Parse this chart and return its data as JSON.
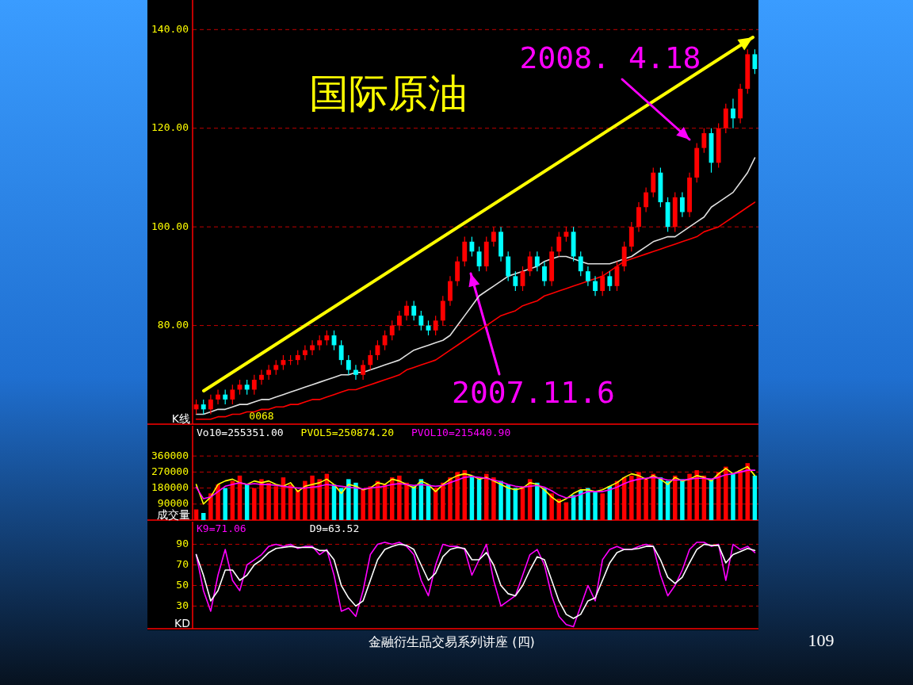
{
  "chart_data": [
    {
      "type": "candlestick",
      "title": "国际原油",
      "ylabel": "K线",
      "ylim": [
        60,
        146
      ],
      "yticks": [
        {
          "value": 80,
          "label": "80.00"
        },
        {
          "value": 100,
          "label": "100.00"
        },
        {
          "value": 120,
          "label": "120.00"
        },
        {
          "value": 140,
          "label": "140.00"
        }
      ],
      "grid": "y",
      "categories": [
        null,
        null,
        null,
        null,
        null,
        null,
        null,
        null,
        null,
        null,
        null,
        null,
        null,
        null,
        null,
        null,
        null,
        null,
        null,
        null,
        null,
        null,
        null,
        null,
        null,
        null,
        null,
        null,
        null,
        null,
        null,
        null,
        null,
        null,
        null,
        null,
        null,
        null,
        null,
        null,
        null,
        null,
        null,
        null,
        null,
        null,
        null,
        null,
        null,
        null,
        null,
        null,
        null,
        null,
        null,
        null,
        null,
        null,
        null,
        null,
        null,
        null,
        null,
        null,
        null,
        null,
        null,
        null,
        null,
        null,
        null,
        null,
        null,
        null,
        null,
        null,
        null,
        null
      ],
      "ohlc": [
        [
          63,
          65,
          62,
          64
        ],
        [
          64,
          65,
          62,
          63
        ],
        [
          63,
          66,
          62,
          65
        ],
        [
          65,
          67,
          64,
          66
        ],
        [
          66,
          67,
          64,
          65
        ],
        [
          65,
          68,
          64,
          67
        ],
        [
          67,
          69,
          66,
          68
        ],
        [
          68,
          69,
          66,
          67
        ],
        [
          67,
          70,
          66,
          69
        ],
        [
          69,
          71,
          68,
          70
        ],
        [
          70,
          72,
          69,
          71
        ],
        [
          71,
          73,
          70,
          72
        ],
        [
          72,
          74,
          71,
          73
        ],
        [
          73,
          74,
          72,
          73
        ],
        [
          73,
          75,
          72,
          74
        ],
        [
          74,
          76,
          73,
          75
        ],
        [
          75,
          77,
          74,
          76
        ],
        [
          76,
          78,
          75,
          77
        ],
        [
          77,
          79,
          76,
          78
        ],
        [
          78,
          79,
          75,
          76
        ],
        [
          76,
          77,
          72,
          73
        ],
        [
          73,
          74,
          70,
          71
        ],
        [
          71,
          72,
          69,
          70
        ],
        [
          70,
          73,
          69,
          72
        ],
        [
          72,
          75,
          71,
          74
        ],
        [
          74,
          77,
          73,
          76
        ],
        [
          76,
          79,
          75,
          78
        ],
        [
          78,
          81,
          77,
          80
        ],
        [
          80,
          83,
          79,
          82
        ],
        [
          82,
          85,
          81,
          84
        ],
        [
          84,
          85,
          81,
          82
        ],
        [
          82,
          83,
          79,
          80
        ],
        [
          80,
          81,
          78,
          79
        ],
        [
          79,
          82,
          78,
          81
        ],
        [
          81,
          86,
          80,
          85
        ],
        [
          85,
          90,
          84,
          89
        ],
        [
          89,
          94,
          88,
          93
        ],
        [
          93,
          98,
          92,
          97
        ],
        [
          97,
          98,
          94,
          95
        ],
        [
          95,
          96,
          91,
          92
        ],
        [
          92,
          98,
          91,
          97
        ],
        [
          97,
          100,
          96,
          99
        ],
        [
          99,
          100,
          93,
          94
        ],
        [
          94,
          95,
          89,
          90
        ],
        [
          90,
          91,
          87,
          88
        ],
        [
          88,
          92,
          87,
          91
        ],
        [
          91,
          95,
          90,
          94
        ],
        [
          94,
          95,
          91,
          92
        ],
        [
          92,
          93,
          88,
          89
        ],
        [
          89,
          96,
          88,
          95
        ],
        [
          95,
          99,
          94,
          98
        ],
        [
          98,
          100,
          97,
          99
        ],
        [
          99,
          100,
          93,
          94
        ],
        [
          94,
          95,
          90,
          91
        ],
        [
          91,
          92,
          88,
          89
        ],
        [
          89,
          90,
          86,
          87
        ],
        [
          87,
          91,
          86,
          90
        ],
        [
          90,
          91,
          87,
          88
        ],
        [
          88,
          93,
          87,
          92
        ],
        [
          92,
          97,
          91,
          96
        ],
        [
          96,
          101,
          95,
          100
        ],
        [
          100,
          105,
          99,
          104
        ],
        [
          104,
          108,
          103,
          107
        ],
        [
          107,
          112,
          106,
          111
        ],
        [
          111,
          112,
          104,
          105
        ],
        [
          105,
          106,
          99,
          100
        ],
        [
          100,
          107,
          99,
          106
        ],
        [
          106,
          107,
          102,
          103
        ],
        [
          103,
          111,
          102,
          110
        ],
        [
          110,
          117,
          109,
          116
        ],
        [
          116,
          120,
          115,
          119
        ],
        [
          119,
          120,
          111,
          113
        ],
        [
          113,
          121,
          112,
          120
        ],
        [
          120,
          125,
          119,
          124
        ],
        [
          124,
          126,
          120,
          122
        ],
        [
          122,
          129,
          121,
          128
        ],
        [
          128,
          136,
          127,
          135
        ],
        [
          135,
          136,
          131,
          132
        ]
      ],
      "colors": [
        "#ff0000",
        "#00ffff",
        "#ff0000",
        "#ff0000",
        "#00ffff",
        "#ff0000",
        "#ff0000",
        "#00ffff",
        "#ff0000",
        "#ff0000",
        "#ff0000",
        "#ff0000",
        "#ff0000",
        "#ff0000",
        "#ff0000",
        "#ff0000",
        "#ff0000",
        "#ff0000",
        "#ff0000",
        "#00ffff",
        "#00ffff",
        "#00ffff",
        "#00ffff",
        "#ff0000",
        "#ff0000",
        "#ff0000",
        "#ff0000",
        "#ff0000",
        "#ff0000",
        "#ff0000",
        "#00ffff",
        "#00ffff",
        "#00ffff",
        "#ff0000",
        "#ff0000",
        "#ff0000",
        "#ff0000",
        "#ff0000",
        "#00ffff",
        "#00ffff",
        "#ff0000",
        "#ff0000",
        "#00ffff",
        "#00ffff",
        "#00ffff",
        "#ff0000",
        "#ff0000",
        "#00ffff",
        "#00ffff",
        "#ff0000",
        "#ff0000",
        "#ff0000",
        "#00ffff",
        "#00ffff",
        "#00ffff",
        "#00ffff",
        "#ff0000",
        "#00ffff",
        "#ff0000",
        "#ff0000",
        "#ff0000",
        "#ff0000",
        "#ff0000",
        "#ff0000",
        "#00ffff",
        "#00ffff",
        "#ff0000",
        "#00ffff",
        "#ff0000",
        "#ff0000",
        "#ff0000",
        "#00ffff",
        "#ff0000",
        "#ff0000",
        "#00ffff",
        "#ff0000",
        "#ff0000",
        "#00ffff"
      ],
      "series": [
        {
          "type": "line",
          "color": "#e0e0e0",
          "values": [
            62,
            62,
            62.5,
            63,
            63,
            63.5,
            64,
            64,
            64.5,
            65,
            65,
            65.5,
            66,
            66.5,
            67,
            67.5,
            68,
            68.5,
            69,
            69.5,
            70,
            70,
            70.5,
            70.5,
            71,
            71.5,
            72,
            72.5,
            73,
            74,
            75,
            75.5,
            76,
            76.5,
            77,
            78,
            80,
            82,
            84,
            86,
            87,
            88,
            89,
            90,
            90.5,
            91,
            91.5,
            92,
            93,
            93.5,
            94,
            94,
            93.5,
            93,
            92.5,
            92.5,
            92.5,
            92.5,
            93,
            93.5,
            94,
            95,
            96,
            97,
            97.5,
            98,
            98,
            99,
            100,
            101,
            102,
            104,
            105,
            106,
            107,
            109,
            111,
            114
          ]
        },
        {
          "type": "line",
          "color": "#ff0000",
          "values": [
            61,
            61,
            61,
            61.5,
            61.5,
            62,
            62,
            62.5,
            62.5,
            63,
            63,
            63.5,
            63.5,
            64,
            64,
            64.5,
            65,
            65,
            65.5,
            66,
            66.5,
            67,
            67,
            67.5,
            68,
            68.5,
            69,
            69.5,
            70,
            71,
            71.5,
            72,
            72.5,
            73,
            74,
            75,
            76,
            77,
            78,
            79,
            80,
            81,
            82,
            82.5,
            83,
            84,
            84.5,
            85,
            86,
            86.5,
            87,
            87.5,
            88,
            88.5,
            89,
            89.5,
            90,
            91,
            92,
            93,
            93.5,
            94,
            94.5,
            95,
            95.5,
            96,
            96.5,
            97,
            97.5,
            98,
            99,
            99.5,
            100,
            101,
            102,
            103,
            104,
            105
          ]
        }
      ],
      "annotations": [
        "2008. 4.18",
        "2007.11.6",
        "0068"
      ]
    },
    {
      "type": "bar",
      "ylabel": "成交量",
      "ylim": [
        0,
        530000
      ],
      "yticks": [
        90000,
        180000,
        270000,
        360000
      ],
      "grid": "y",
      "legend": "top left",
      "categories": [
        null,
        null,
        null,
        null,
        null,
        null,
        null,
        null,
        null,
        null,
        null,
        null,
        null,
        null,
        null,
        null,
        null,
        null,
        null,
        null,
        null,
        null,
        null,
        null,
        null,
        null,
        null,
        null,
        null,
        null,
        null,
        null,
        null,
        null,
        null,
        null,
        null,
        null,
        null,
        null,
        null,
        null,
        null,
        null,
        null,
        null,
        null,
        null,
        null,
        null,
        null,
        null,
        null,
        null,
        null,
        null,
        null,
        null,
        null,
        null,
        null,
        null,
        null,
        null,
        null,
        null,
        null,
        null,
        null,
        null,
        null,
        null,
        null,
        null,
        null,
        null,
        null,
        null
      ],
      "series": [
        {
          "type": "bar",
          "colors": [
            "#ff0000",
            "#00ffff",
            "#ff0000",
            "#ff0000",
            "#00ffff",
            "#ff0000",
            "#ff0000",
            "#00ffff",
            "#ff0000",
            "#ff0000",
            "#ff0000",
            "#ff0000",
            "#ff0000",
            "#ff0000",
            "#ff0000",
            "#ff0000",
            "#ff0000",
            "#ff0000",
            "#ff0000",
            "#00ffff",
            "#00ffff",
            "#00ffff",
            "#00ffff",
            "#ff0000",
            "#ff0000",
            "#ff0000",
            "#ff0000",
            "#ff0000",
            "#ff0000",
            "#ff0000",
            "#00ffff",
            "#00ffff",
            "#00ffff",
            "#ff0000",
            "#ff0000",
            "#ff0000",
            "#ff0000",
            "#ff0000",
            "#00ffff",
            "#00ffff",
            "#ff0000",
            "#ff0000",
            "#00ffff",
            "#00ffff",
            "#00ffff",
            "#ff0000",
            "#ff0000",
            "#00ffff",
            "#00ffff",
            "#ff0000",
            "#ff0000",
            "#ff0000",
            "#00ffff",
            "#00ffff",
            "#00ffff",
            "#00ffff",
            "#ff0000",
            "#00ffff",
            "#ff0000",
            "#ff0000",
            "#ff0000",
            "#ff0000",
            "#ff0000",
            "#ff0000",
            "#00ffff",
            "#00ffff",
            "#ff0000",
            "#00ffff",
            "#ff0000",
            "#ff0000",
            "#ff0000",
            "#00ffff",
            "#ff0000",
            "#ff0000",
            "#00ffff",
            "#ff0000",
            "#ff0000",
            "#00ffff"
          ],
          "values": [
            60000,
            40000,
            150000,
            200000,
            180000,
            220000,
            250000,
            200000,
            180000,
            230000,
            210000,
            190000,
            240000,
            200000,
            170000,
            220000,
            250000,
            230000,
            260000,
            200000,
            180000,
            230000,
            210000,
            170000,
            190000,
            220000,
            200000,
            240000,
            250000,
            210000,
            190000,
            230000,
            200000,
            180000,
            210000,
            240000,
            270000,
            280000,
            250000,
            230000,
            260000,
            240000,
            220000,
            200000,
            180000,
            190000,
            230000,
            210000,
            180000,
            150000,
            120000,
            100000,
            140000,
            170000,
            180000,
            160000,
            150000,
            190000,
            220000,
            240000,
            250000,
            270000,
            230000,
            260000,
            240000,
            220000,
            250000,
            230000,
            260000,
            280000,
            250000,
            230000,
            270000,
            300000,
            260000,
            280000,
            320000,
            250000
          ]
        },
        {
          "type": "line",
          "name": "PVOL5=250874.20",
          "color": "#ffff00",
          "values": [
            200000,
            90000,
            130000,
            200000,
            220000,
            230000,
            210000,
            200000,
            220000,
            210000,
            220000,
            200000,
            190000,
            210000,
            160000,
            190000,
            200000,
            210000,
            230000,
            200000,
            150000,
            200000,
            190000,
            170000,
            180000,
            210000,
            200000,
            230000,
            220000,
            200000,
            180000,
            220000,
            200000,
            160000,
            200000,
            230000,
            250000,
            260000,
            250000,
            230000,
            240000,
            220000,
            200000,
            180000,
            170000,
            180000,
            210000,
            200000,
            170000,
            130000,
            100000,
            120000,
            150000,
            170000,
            170000,
            160000,
            170000,
            190000,
            210000,
            240000,
            260000,
            250000,
            230000,
            250000,
            230000,
            200000,
            240000,
            220000,
            230000,
            250000,
            240000,
            220000,
            260000,
            290000,
            260000,
            280000,
            300000,
            250000
          ]
        },
        {
          "type": "line",
          "name": "PVOL10=215440.90",
          "color": "#ff00ff",
          "values": [
            185000,
            120000,
            130000,
            160000,
            190000,
            200000,
            210000,
            200000,
            205000,
            200000,
            200000,
            195000,
            190000,
            185000,
            180000,
            180000,
            185000,
            190000,
            200000,
            195000,
            190000,
            185000,
            180000,
            175000,
            180000,
            185000,
            190000,
            200000,
            205000,
            200000,
            195000,
            200000,
            195000,
            190000,
            195000,
            210000,
            225000,
            240000,
            245000,
            240000,
            235000,
            225000,
            215000,
            200000,
            190000,
            185000,
            190000,
            195000,
            185000,
            165000,
            140000,
            125000,
            130000,
            145000,
            160000,
            160000,
            160000,
            170000,
            185000,
            205000,
            220000,
            230000,
            235000,
            240000,
            235000,
            225000,
            225000,
            225000,
            230000,
            235000,
            235000,
            230000,
            240000,
            255000,
            260000,
            270000,
            280000,
            280000
          ]
        }
      ],
      "annotations": [
        "Vo10=255351.00"
      ]
    },
    {
      "type": "line",
      "ylabel": "KD",
      "ylim": [
        8,
        112
      ],
      "yticks": [
        30,
        50,
        70,
        90
      ],
      "grid": "y",
      "legend": "top left",
      "categories": [
        null,
        null,
        null,
        null,
        null,
        null,
        null,
        null,
        null,
        null,
        null,
        null,
        null,
        null,
        null,
        null,
        null,
        null,
        null,
        null,
        null,
        null,
        null,
        null,
        null,
        null,
        null,
        null,
        null,
        null,
        null,
        null,
        null,
        null,
        null,
        null,
        null,
        null,
        null,
        null,
        null,
        null,
        null,
        null,
        null,
        null,
        null,
        null,
        null,
        null,
        null,
        null,
        null,
        null,
        null,
        null,
        null,
        null,
        null,
        null,
        null,
        null,
        null,
        null,
        null,
        null,
        null,
        null,
        null,
        null,
        null,
        null,
        null,
        null,
        null,
        null,
        null,
        null
      ],
      "series": [
        {
          "name": "K9=71.06",
          "color": "#ff00ff",
          "values": [
            80,
            45,
            25,
            60,
            85,
            55,
            45,
            70,
            75,
            80,
            88,
            90,
            88,
            90,
            86,
            88,
            88,
            80,
            85,
            60,
            25,
            28,
            20,
            45,
            80,
            90,
            92,
            90,
            92,
            88,
            80,
            55,
            40,
            70,
            90,
            88,
            88,
            85,
            60,
            75,
            90,
            55,
            30,
            35,
            40,
            60,
            80,
            85,
            70,
            40,
            20,
            12,
            10,
            30,
            50,
            35,
            75,
            85,
            88,
            85,
            85,
            88,
            90,
            88,
            60,
            40,
            50,
            65,
            85,
            92,
            92,
            88,
            90,
            55,
            90,
            85,
            88,
            82
          ]
        },
        {
          "name": "D9=63.52",
          "color": "#ffffff",
          "values": [
            80,
            60,
            35,
            45,
            65,
            65,
            55,
            60,
            70,
            75,
            82,
            86,
            87,
            88,
            87,
            87,
            87,
            84,
            84,
            75,
            50,
            38,
            30,
            35,
            55,
            75,
            85,
            88,
            90,
            89,
            85,
            70,
            55,
            62,
            78,
            85,
            87,
            86,
            75,
            75,
            82,
            70,
            50,
            42,
            40,
            50,
            65,
            78,
            75,
            55,
            35,
            22,
            18,
            22,
            35,
            38,
            55,
            72,
            82,
            85,
            85,
            86,
            88,
            88,
            75,
            58,
            52,
            58,
            72,
            85,
            90,
            89,
            89,
            72,
            80,
            83,
            86,
            84
          ]
        }
      ],
      "annotations": [
        "金融衍生品交易系列讲座 (四)",
        "109"
      ]
    }
  ]
}
